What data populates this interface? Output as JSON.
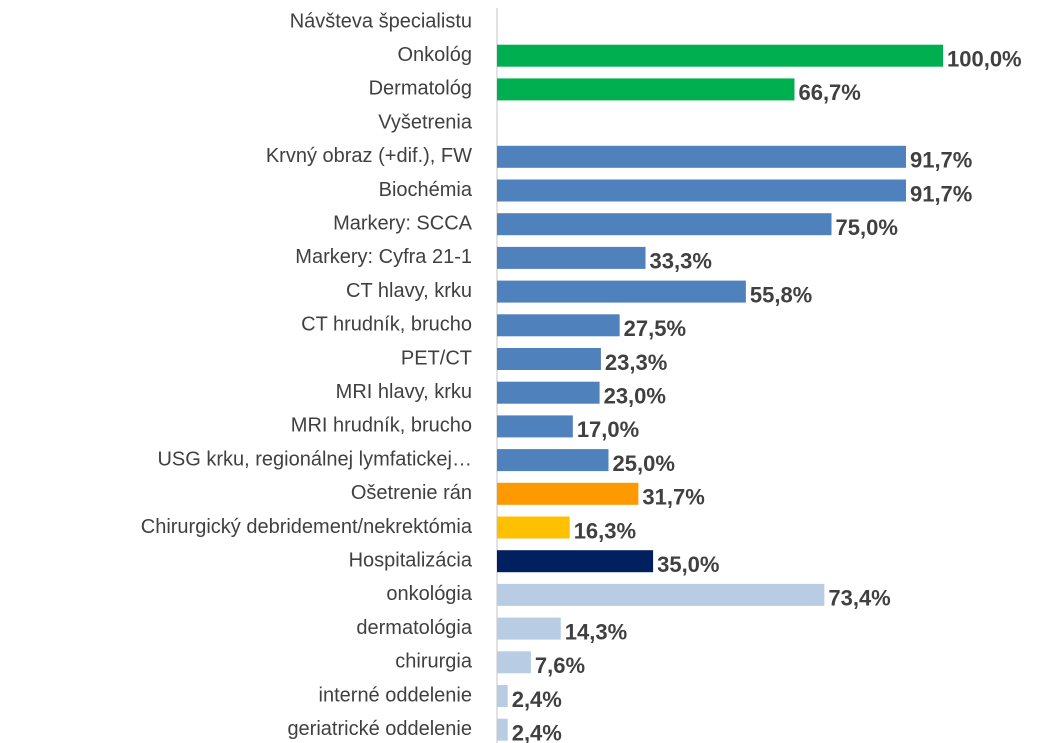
{
  "chart_data": {
    "type": "bar",
    "orientation": "horizontal",
    "categories": [
      "Návšteva špecialistu",
      "Onkológ",
      "Dermatológ",
      "Vyšetrenia",
      "Krvný obraz (+dif.), FW",
      "Biochémia",
      "Markery: SCCA",
      "Markery: Cyfra 21-1",
      "CT hlavy, krku",
      "CT hrudník, brucho",
      "PET/CT",
      "MRI hlavy, krku",
      "MRI hrudník, brucho",
      "USG krku, regionálnej lymfatickej…",
      "Ošetrenie rán",
      "Chirurgický debridement/nekrektómia",
      "Hospitalizácia",
      "onkológia",
      "dermatológia",
      "chirurgia",
      "interné oddelenie",
      "geriatrické oddelenie"
    ],
    "values": [
      null,
      100,
      66.7,
      null,
      91.7,
      91.7,
      75,
      33.3,
      55.8,
      27.5,
      23.3,
      23,
      17,
      25,
      31.7,
      16.3,
      35,
      73.4,
      14.3,
      7.6,
      2.4,
      2.4
    ],
    "value_labels": [
      null,
      "100,0%",
      "66,7%",
      null,
      "91,7%",
      "91,7%",
      "75,0%",
      "33,3%",
      "55,8%",
      "27,5%",
      "23,3%",
      "23,0%",
      "17,0%",
      "25,0%",
      "31,7%",
      "16,3%",
      "35,0%",
      "73,4%",
      "14,3%",
      "7,6%",
      "2,4%",
      "2,4%"
    ],
    "colors": [
      null,
      "#00b050",
      "#00b050",
      null,
      "#4f81bd",
      "#4f81bd",
      "#4f81bd",
      "#4f81bd",
      "#4f81bd",
      "#4f81bd",
      "#4f81bd",
      "#4f81bd",
      "#4f81bd",
      "#4f81bd",
      "#ff9900",
      "#ffc000",
      "#002060",
      "#b8cce4",
      "#b8cce4",
      "#b8cce4",
      "#b8cce4",
      "#b8cce4"
    ],
    "xlim": [
      0,
      100
    ]
  }
}
